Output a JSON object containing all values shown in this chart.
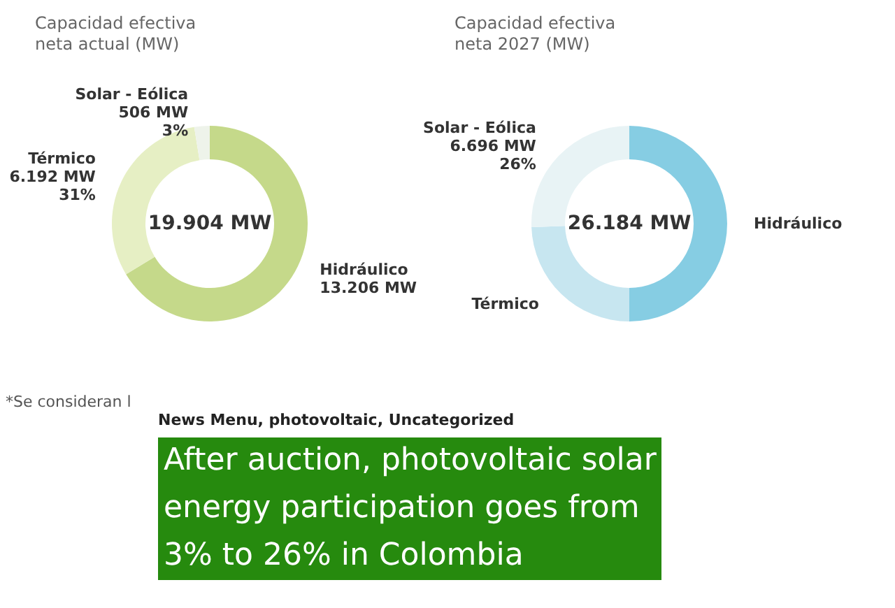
{
  "chart_data": [
    {
      "type": "donut",
      "title": "Capacidad efectiva\nneta actual (MW)",
      "categories": [
        "Hidráulico",
        "Térmico",
        "Solar - Eólica"
      ],
      "values": [
        13206,
        6192,
        506
      ],
      "colors": [
        "#c5d98a",
        "#e6efc4",
        "#eef3ea"
      ],
      "value_labels": [
        "13.206 MW",
        "6.192 MW\n31%",
        "506 MW\n3%"
      ],
      "annotations": [
        "19.904 MW",
        "*Se consideran l"
      ]
    },
    {
      "type": "donut",
      "title": "Capacidad efectiva\nneta 2027 (MW)",
      "categories": [
        "Hidráulico",
        "Térmico",
        "Solar - Eólica"
      ],
      "values": [
        13092,
        6396,
        6696
      ],
      "colors": [
        "#86cde3",
        "#c7e6f0",
        "#e8f3f5"
      ],
      "value_labels": [
        null,
        null,
        "6.696 MW\n26%"
      ],
      "annotations": [
        "26.184 MW"
      ]
    },
    {
      "type": "other",
      "subtitle": "News Menu, photovoltaic, Uncategorized",
      "title": "After auction, photovoltaic solar\nenergy participation goes from\n3% to 26% in Colombia"
    }
  ]
}
